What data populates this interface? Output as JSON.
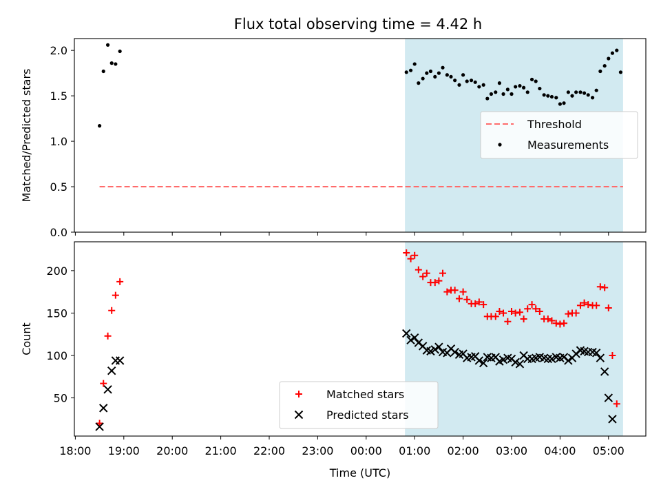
{
  "figure_title": "Flux total observing time = 4.42 h",
  "chart_data": [
    {
      "type": "scatter",
      "ylabel": "Matched/Predicted stars",
      "xlabel": "",
      "x_axis_unit": "hours from 18:00 UTC (tick labels shown as clock times)",
      "xlim": [
        -0.02,
        11.77
      ],
      "ylim": [
        0,
        2.13
      ],
      "yticks": [
        0.0,
        0.5,
        1.0,
        1.5,
        2.0
      ],
      "ytick_labels": [
        "0.0",
        "0.5",
        "1.0",
        "1.5",
        "2.0"
      ],
      "shaded_span": {
        "from": 6.8,
        "to": 11.3,
        "color": "#add8e6"
      },
      "grid": false,
      "legend_position": "center-right",
      "series": [
        {
          "name": "Threshold",
          "kind": "line",
          "style": "dashed",
          "color": "#ff6b6b",
          "x": [
            0.5,
            11.3
          ],
          "y": [
            0.5,
            0.5
          ]
        },
        {
          "name": "Measurements",
          "kind": "scatter",
          "marker": "dot",
          "color": "#000000",
          "x": [
            0.5,
            0.58,
            0.67,
            0.75,
            0.83,
            0.92,
            6.83,
            6.92,
            7.0,
            7.08,
            7.17,
            7.25,
            7.33,
            7.42,
            7.5,
            7.58,
            7.67,
            7.75,
            7.83,
            7.92,
            8.0,
            8.08,
            8.17,
            8.25,
            8.33,
            8.42,
            8.5,
            8.58,
            8.67,
            8.75,
            8.83,
            8.92,
            9.0,
            9.08,
            9.17,
            9.25,
            9.33,
            9.42,
            9.5,
            9.58,
            9.67,
            9.75,
            9.83,
            9.92,
            10.0,
            10.08,
            10.17,
            10.25,
            10.33,
            10.42,
            10.5,
            10.58,
            10.67,
            10.75,
            10.83,
            10.92,
            11.0,
            11.08,
            11.17,
            11.25
          ],
          "y": [
            1.17,
            1.77,
            2.06,
            1.86,
            1.85,
            1.99,
            1.76,
            1.78,
            1.85,
            1.64,
            1.69,
            1.75,
            1.77,
            1.71,
            1.75,
            1.81,
            1.73,
            1.71,
            1.67,
            1.62,
            1.73,
            1.66,
            1.67,
            1.65,
            1.6,
            1.62,
            1.47,
            1.52,
            1.54,
            1.64,
            1.52,
            1.57,
            1.52,
            1.6,
            1.61,
            1.59,
            1.54,
            1.68,
            1.66,
            1.58,
            1.51,
            1.5,
            1.49,
            1.48,
            1.41,
            1.42,
            1.54,
            1.5,
            1.54,
            1.54,
            1.53,
            1.51,
            1.48,
            1.56,
            1.77,
            1.83,
            1.91,
            1.97,
            2.0,
            1.76
          ]
        }
      ]
    },
    {
      "type": "scatter",
      "ylabel": "Count",
      "xlabel": "Time (UTC)",
      "x_axis_unit": "hours from 18:00 UTC (tick labels shown as clock times)",
      "xlim": [
        -0.02,
        11.77
      ],
      "ylim": [
        5,
        234
      ],
      "yticks": [
        50,
        100,
        150,
        200
      ],
      "ytick_labels": [
        "50",
        "100",
        "150",
        "200"
      ],
      "xticks": [
        0,
        1,
        2,
        3,
        4,
        5,
        6,
        7,
        8,
        9,
        10,
        11
      ],
      "xtick_labels": [
        "18:00",
        "19:00",
        "20:00",
        "21:00",
        "22:00",
        "23:00",
        "00:00",
        "01:00",
        "02:00",
        "03:00",
        "04:00",
        "05:00"
      ],
      "shaded_span": {
        "from": 6.8,
        "to": 11.3,
        "color": "#add8e6"
      },
      "grid": false,
      "legend_position": "bottom-center",
      "series": [
        {
          "name": "Matched stars",
          "kind": "scatter",
          "marker": "plus",
          "color": "#ff0000",
          "x": [
            0.5,
            0.58,
            0.67,
            0.75,
            0.83,
            0.92,
            6.83,
            6.92,
            7.0,
            7.08,
            7.17,
            7.25,
            7.33,
            7.42,
            7.5,
            7.58,
            7.67,
            7.75,
            7.83,
            7.92,
            8.0,
            8.08,
            8.17,
            8.25,
            8.33,
            8.42,
            8.5,
            8.58,
            8.67,
            8.75,
            8.83,
            8.92,
            9.0,
            9.08,
            9.17,
            9.25,
            9.33,
            9.42,
            9.5,
            9.58,
            9.67,
            9.75,
            9.83,
            9.92,
            10.0,
            10.08,
            10.17,
            10.25,
            10.33,
            10.42,
            10.5,
            10.58,
            10.67,
            10.75,
            10.83,
            10.92,
            11.0,
            11.08,
            11.17,
            11.25
          ],
          "y": [
            20,
            67,
            123,
            153,
            171,
            187,
            221,
            214,
            218,
            201,
            193,
            197,
            186,
            186,
            188,
            197,
            175,
            177,
            177,
            167,
            175,
            166,
            161,
            161,
            163,
            160,
            146,
            146,
            146,
            152,
            150,
            140,
            152,
            150,
            151,
            143,
            155,
            160,
            155,
            152,
            143,
            143,
            141,
            138,
            137,
            138,
            149,
            150,
            150,
            159,
            162,
            160,
            159,
            159,
            181,
            180,
            156,
            100,
            43,
            null
          ]
        },
        {
          "name": "Predicted stars",
          "kind": "scatter",
          "marker": "x",
          "color": "#000000",
          "x": [
            0.5,
            0.58,
            0.67,
            0.75,
            0.83,
            0.92,
            6.83,
            6.92,
            7.0,
            7.08,
            7.17,
            7.25,
            7.33,
            7.42,
            7.5,
            7.58,
            7.67,
            7.75,
            7.83,
            7.92,
            8.0,
            8.08,
            8.17,
            8.25,
            8.33,
            8.42,
            8.5,
            8.58,
            8.67,
            8.75,
            8.83,
            8.92,
            9.0,
            9.08,
            9.17,
            9.25,
            9.33,
            9.42,
            9.5,
            9.58,
            9.67,
            9.75,
            9.83,
            9.92,
            10.0,
            10.08,
            10.17,
            10.25,
            10.33,
            10.42,
            10.5,
            10.58,
            10.67,
            10.75,
            10.83,
            10.92,
            11.0,
            11.08,
            11.17,
            11.25
          ],
          "y": [
            16,
            38,
            60,
            82,
            94,
            94,
            126,
            118,
            121,
            115,
            111,
            106,
            105,
            107,
            110,
            104,
            103,
            108,
            104,
            101,
            102,
            97,
            98,
            99,
            94,
            91,
            98,
            97,
            98,
            93,
            95,
            97,
            96,
            92,
            90,
            100,
            96,
            96,
            97,
            98,
            97,
            96,
            96,
            98,
            97,
            98,
            94,
            97,
            102,
            106,
            105,
            104,
            104,
            103,
            97,
            81,
            50,
            25,
            null,
            null
          ]
        }
      ]
    }
  ]
}
